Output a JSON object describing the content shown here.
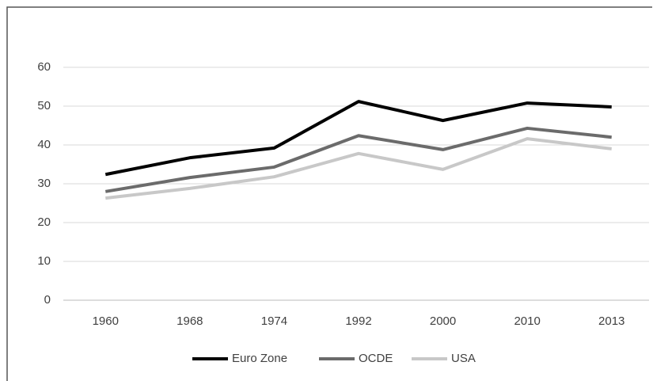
{
  "chart_data": {
    "type": "line",
    "categories": [
      "1960",
      "1968",
      "1974",
      "1992",
      "2000",
      "2010",
      "2013"
    ],
    "series": [
      {
        "name": "Euro Zone",
        "color": "#000000",
        "values": [
          32.4,
          36.7,
          39.2,
          51.2,
          46.3,
          50.8,
          49.8
        ]
      },
      {
        "name": "OCDE",
        "color": "#6b6b6b",
        "values": [
          28,
          31.6,
          34.3,
          42.4,
          38.8,
          44.3,
          42
        ]
      },
      {
        "name": "USA",
        "color": "#c8c8c8",
        "values": [
          26.3,
          28.8,
          31.8,
          37.8,
          33.7,
          41.6,
          39
        ]
      }
    ],
    "ylim": [
      0,
      60
    ],
    "yticks": [
      0,
      10,
      20,
      30,
      40,
      50,
      60
    ],
    "grid": true,
    "legend": "bottom"
  }
}
